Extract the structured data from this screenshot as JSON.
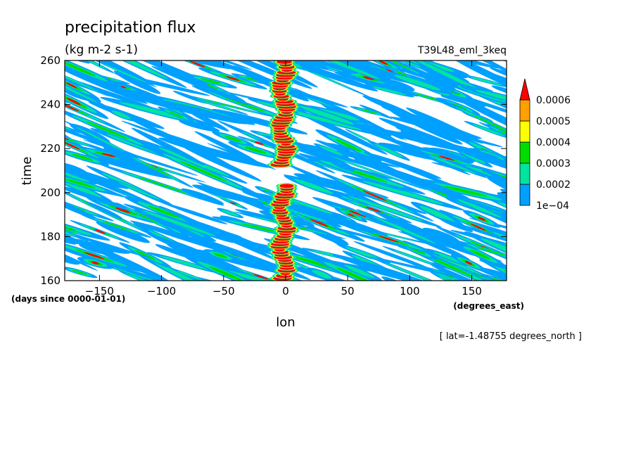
{
  "chart_data": {
    "type": "heatmap",
    "title": "precipitation flux",
    "units": "(kg m-2 s-1)",
    "run_label": "T39L48_eml_3keq",
    "xlabel": "lon",
    "x_units": "(degrees_east)",
    "ylabel": "time",
    "y_units": "(days since 0000-01-01)",
    "slice_note": "[ lat=-1.48755 degrees_north ]",
    "xlim": [
      -178,
      178
    ],
    "ylim": [
      160,
      260
    ],
    "x_ticks": [
      -150,
      -100,
      -50,
      0,
      50,
      100,
      150
    ],
    "x_tick_labels": [
      "−150",
      "−100",
      "−50",
      "0",
      "50",
      "100",
      "150"
    ],
    "y_ticks": [
      160,
      180,
      200,
      220,
      240,
      260
    ],
    "y_tick_labels": [
      "160",
      "180",
      "200",
      "220",
      "240",
      "260"
    ],
    "colorbar": {
      "levels": [
        0.0001,
        0.0002,
        0.0003,
        0.0004,
        0.0005,
        0.0006
      ],
      "labels": [
        "1e−04",
        "0.0002",
        "0.0003",
        "0.0004",
        "0.0005",
        "0.0006"
      ],
      "colors": [
        "#00a0ff",
        "#00e4a0",
        "#00dc00",
        "#ffff00",
        "#ffa000",
        "#ff0000"
      ],
      "extend": "max"
    },
    "grid": false,
    "pattern_description": "westward-propagating diagonal bands of precipitation across all longitudes; intense stationary/standing column near lon 0 from time ~165 to 260 with a gap near 205-212"
  }
}
